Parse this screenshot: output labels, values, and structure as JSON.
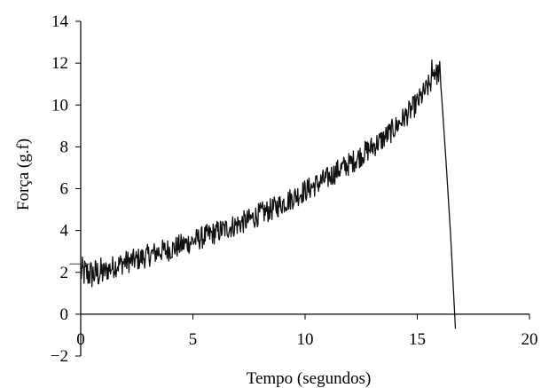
{
  "chart_data": {
    "type": "line",
    "title": "",
    "xlabel": "Tempo (segundos)",
    "ylabel": "Força (g.f)",
    "xlim": [
      0,
      20
    ],
    "ylim": [
      -2,
      14
    ],
    "x_ticks": [
      "0",
      "5",
      "10",
      "15",
      "20"
    ],
    "y_ticks": [
      "−2",
      "0",
      "2",
      "4",
      "6",
      "8",
      "10",
      "12",
      "14"
    ],
    "grid": false,
    "legend": "none",
    "series": [
      {
        "color": "#111111",
        "noisy": true,
        "x": [
          0,
          0.5,
          1,
          1.5,
          2,
          2.5,
          3,
          3.5,
          4,
          4.5,
          5,
          5.5,
          6,
          6.5,
          7,
          7.5,
          8,
          8.5,
          9,
          9.5,
          10,
          10.5,
          11,
          11.5,
          12,
          12.5,
          13,
          13.5,
          14,
          14.5,
          15,
          15.5,
          15.8,
          16.0,
          16.1,
          16.3,
          16.5,
          16.7
        ],
        "y": [
          2.0,
          1.9,
          2.0,
          2.3,
          2.5,
          2.6,
          2.8,
          3.0,
          3.1,
          3.3,
          3.5,
          3.7,
          3.9,
          4.1,
          4.3,
          4.5,
          4.8,
          5.0,
          5.3,
          5.6,
          5.9,
          6.2,
          6.5,
          6.9,
          7.2,
          7.6,
          8.0,
          8.4,
          8.9,
          9.5,
          10.1,
          10.9,
          11.4,
          11.6,
          10.2,
          7.0,
          3.5,
          -0.7
        ]
      }
    ],
    "annotations": [
      {
        "type": "hline_marker",
        "y": 2.4,
        "x_from": -0.5,
        "x_to": 0.5
      }
    ]
  }
}
